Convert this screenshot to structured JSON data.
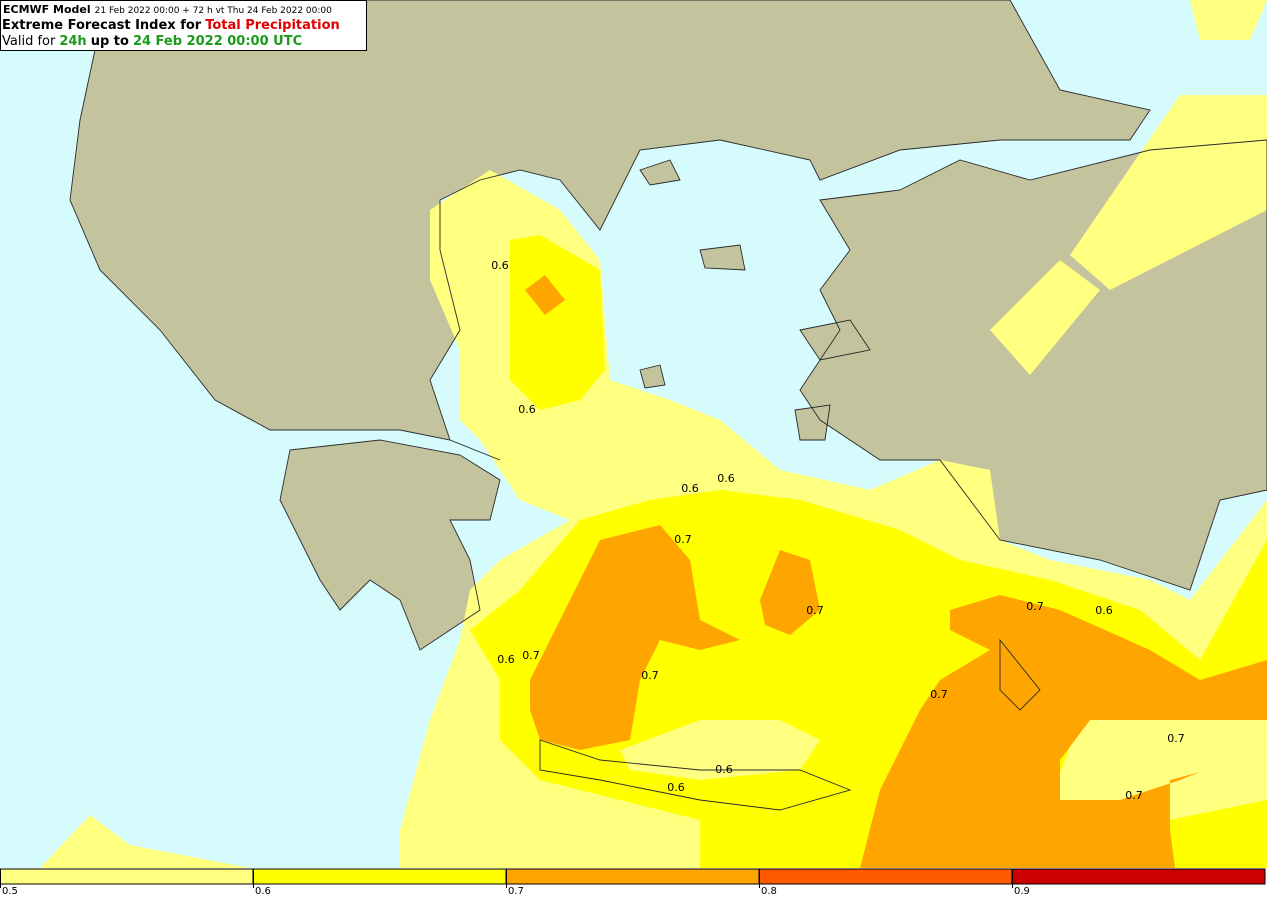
{
  "header": {
    "model": "ECMWF Model",
    "run": "21 Feb 2022 00:00 + 72 h vt Thu 24 Feb 2022 00:00",
    "title": "Extreme Forecast Index for",
    "parameter": "Total Precipitation",
    "valid_prefix": "Valid for",
    "period": "24h",
    "valid_mid": "up to",
    "valid_time": "24 Feb 2022 00:00 UTC"
  },
  "contour_labels": [
    "0.6",
    "0.6",
    "0.6",
    "0.6",
    "0.6",
    "0.6",
    "0.6",
    "0.6",
    "0.7",
    "0.7",
    "0.7",
    "0.7",
    "0.7",
    "0.7",
    "0.7",
    "0.7"
  ],
  "colorbar": {
    "lim": [
      0.5,
      1
    ],
    "ticks": [
      0.5,
      0.6,
      0.7,
      0.8,
      0.9
    ],
    "colors": [
      "#ffff80",
      "#ffff00",
      "#ffa500",
      "#ff5a00",
      "#cc0000"
    ]
  }
}
